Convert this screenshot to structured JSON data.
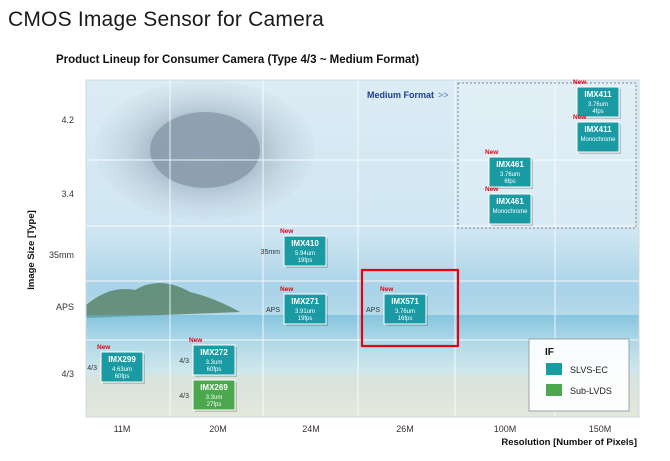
{
  "title": "CMOS Image Sensor for Camera",
  "subtitle": "Product Lineup for Consumer Camera (Type 4/3 ~ Medium Format)",
  "chart_data": {
    "type": "scatter",
    "xlabel": "Resolution  [Number of Pixels]",
    "ylabel": "Image Size [Type]",
    "x_categories": [
      "11M",
      "20M",
      "24M",
      "26M",
      "100M",
      "150M"
    ],
    "y_categories": [
      "4/3",
      "APS",
      "35mm",
      "3.4",
      "4.2"
    ],
    "grid": true,
    "region_label": "Medium Format",
    "region_arrow": ">>",
    "highlight": "IMX571",
    "legend": {
      "title": "IF",
      "position": "bottom-right",
      "items": [
        {
          "label": "SLVS-EC",
          "color": "#1a9aa3"
        },
        {
          "label": "Sub-LVDS",
          "color": "#4aa84e"
        }
      ]
    },
    "new_label": "New",
    "sensors": [
      {
        "name": "IMX299",
        "resolution": "11M",
        "size": "4/3",
        "format": "4/3",
        "spec1": "4.63um",
        "spec2": "60fps",
        "interface": "SLVS-EC",
        "new": true
      },
      {
        "name": "IMX272",
        "resolution": "20M",
        "size": "4/3",
        "format": "4/3",
        "spec1": "3.3um",
        "spec2": "60fps",
        "interface": "SLVS-EC",
        "new": true
      },
      {
        "name": "IMX269",
        "resolution": "20M",
        "size": "4/3",
        "format": "4/3",
        "spec1": "3.3um",
        "spec2": "27fps",
        "interface": "Sub-LVDS",
        "new": false
      },
      {
        "name": "IMX410",
        "resolution": "24M",
        "size": "35mm",
        "format": "35mm",
        "spec1": "5.94um",
        "spec2": "19fps",
        "interface": "SLVS-EC",
        "new": true
      },
      {
        "name": "IMX271",
        "resolution": "24M",
        "size": "APS",
        "format": "APS",
        "spec1": "3.91um",
        "spec2": "19fps",
        "interface": "SLVS-EC",
        "new": true
      },
      {
        "name": "IMX571",
        "resolution": "26M",
        "size": "APS",
        "format": "APS",
        "spec1": "3.76um",
        "spec2": "16fps",
        "interface": "SLVS-EC",
        "new": true
      },
      {
        "name": "IMX461",
        "resolution": "100M",
        "size": "3.4",
        "format": "",
        "spec1": "3.76um",
        "spec2": "6fps",
        "interface": "SLVS-EC",
        "new": true
      },
      {
        "name": "IMX461",
        "resolution": "100M",
        "size": "3.4",
        "format": "",
        "spec1": "Monochrome",
        "spec2": "",
        "interface": "SLVS-EC",
        "new": true
      },
      {
        "name": "IMX411",
        "resolution": "150M",
        "size": "4.2",
        "format": "",
        "spec1": "3.76um",
        "spec2": "4fps",
        "interface": "SLVS-EC",
        "new": true
      },
      {
        "name": "IMX411",
        "resolution": "150M",
        "size": "4.2",
        "format": "",
        "spec1": "Monochrome",
        "spec2": "",
        "interface": "SLVS-EC",
        "new": true
      }
    ]
  }
}
